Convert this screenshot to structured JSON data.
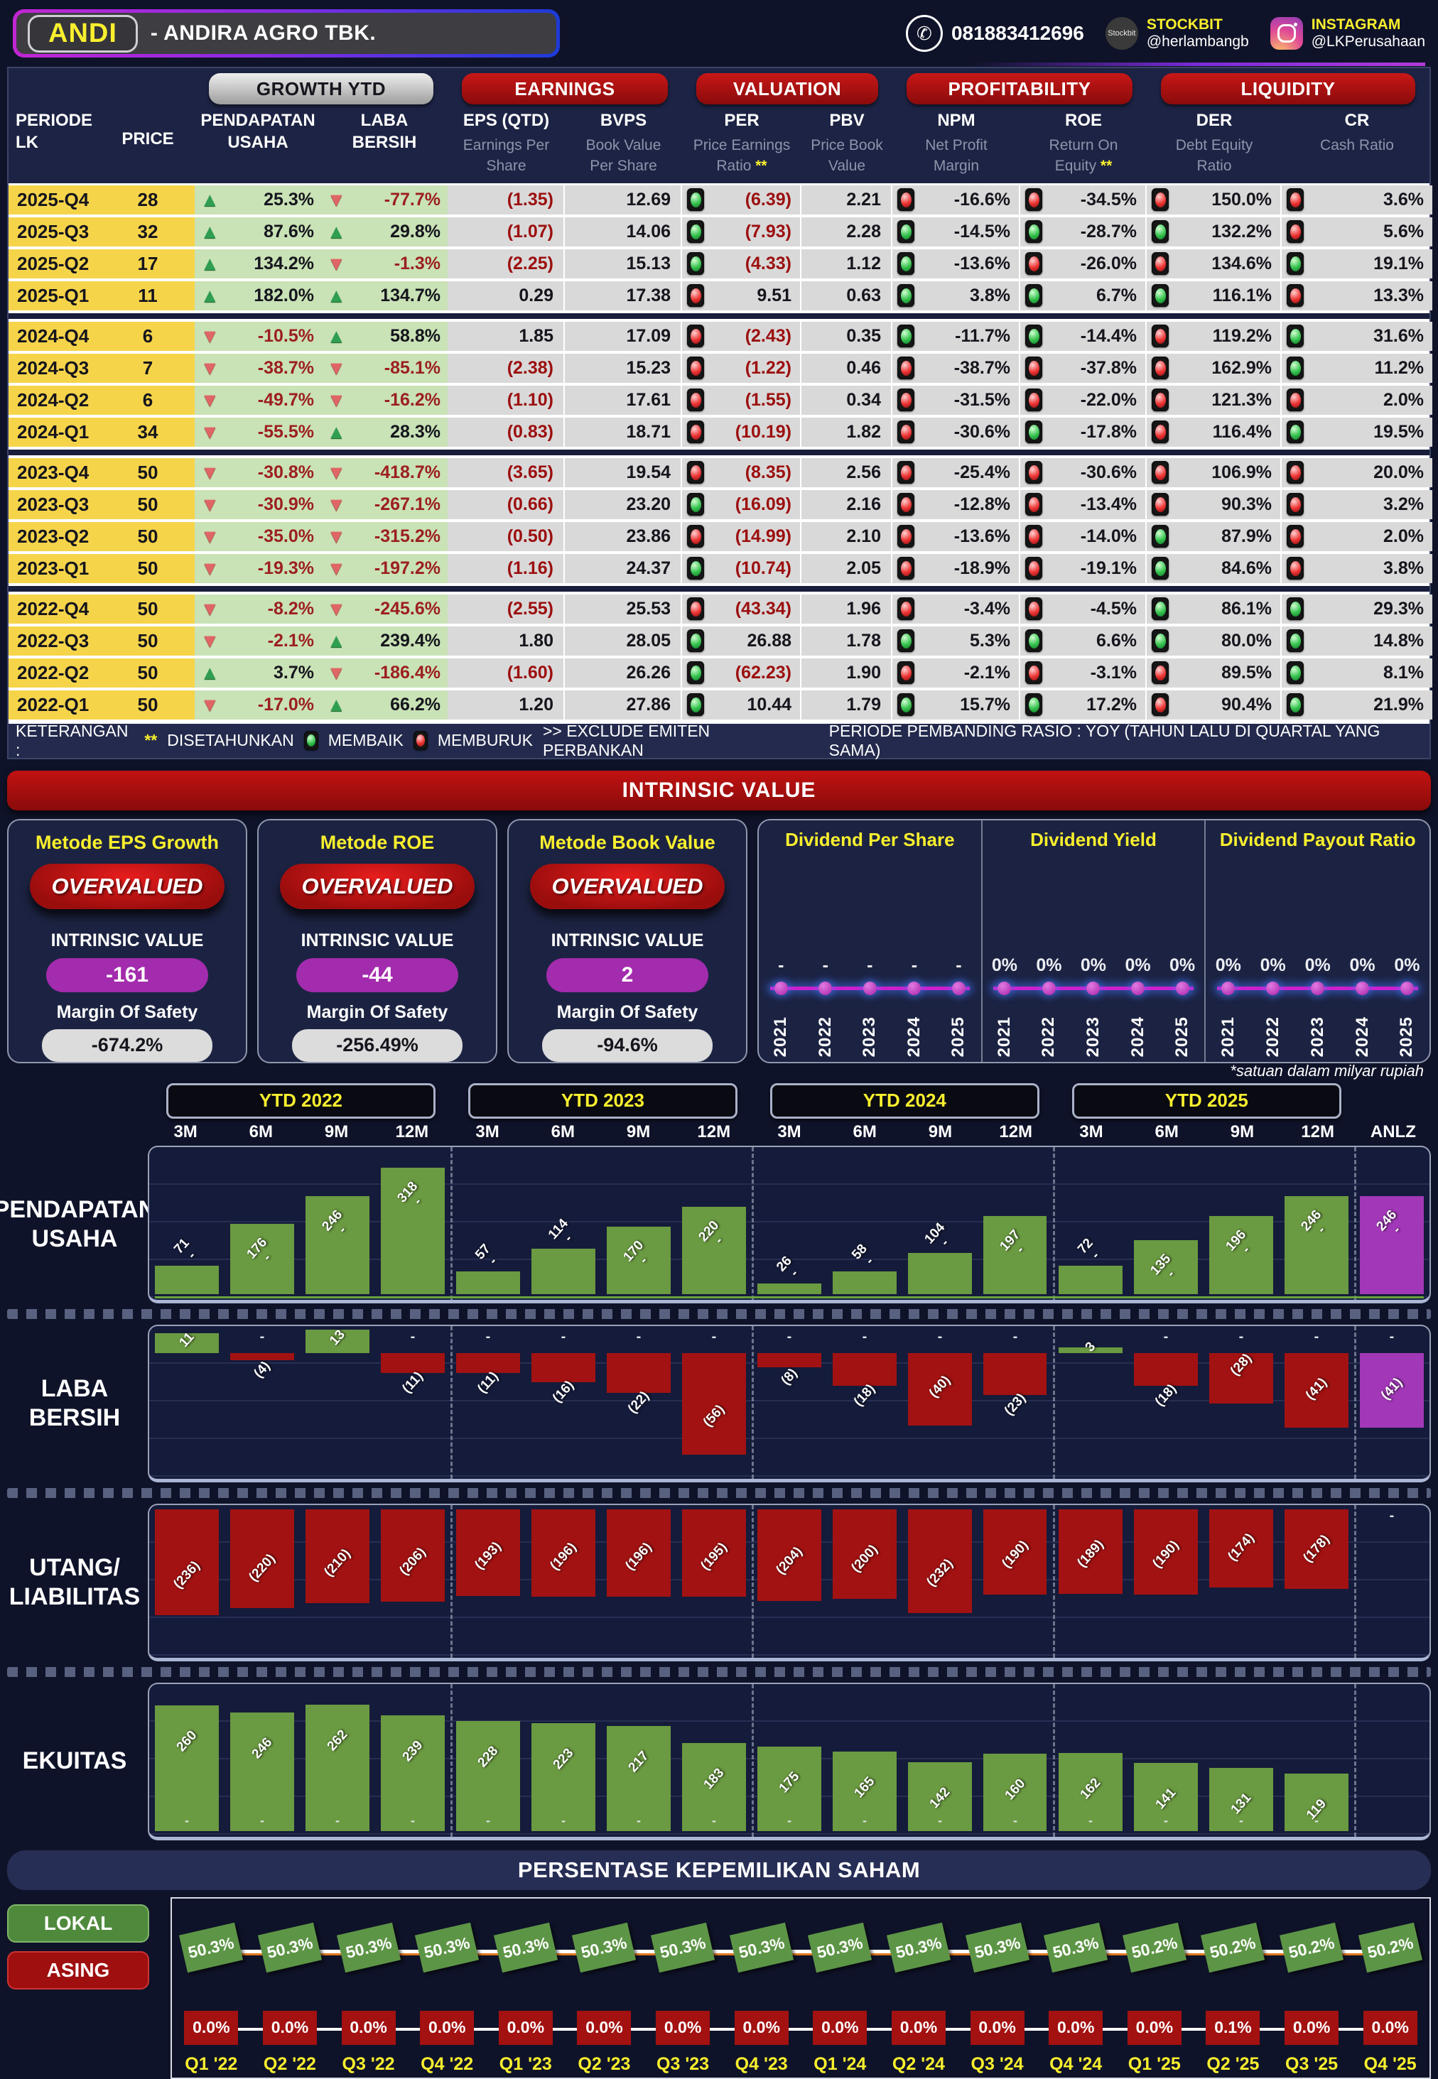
{
  "header": {
    "ticker": "ANDI",
    "company": "-  ANDIRA AGRO TBK.",
    "whatsapp": "081883412696",
    "stockbit_logo": "Stockbit",
    "stockbit_label": "STOCKBIT",
    "stockbit_handle": "@herlambangb",
    "instagram_label": "INSTAGRAM",
    "instagram_handle": "@LKPerusahaan"
  },
  "colors": {
    "accent_red": "#b01010",
    "bar_green": "#6a9a41",
    "bar_red": "#a21212",
    "bar_purple": "#a238b8",
    "line_magenta": "#cf1fcf",
    "lokal_green": "#5d9546",
    "asing_red": "#a31111",
    "yellow": "#f8ef2e"
  },
  "table": {
    "groups": [
      {
        "label": "GROWTH YTD",
        "kind": "silver"
      },
      {
        "label": "EARNINGS",
        "kind": "red"
      },
      {
        "label": "VALUATION",
        "kind": "red"
      },
      {
        "label": "PROFITABILITY",
        "kind": "red"
      },
      {
        "label": "LIQUIDITY",
        "kind": "red"
      }
    ],
    "columns": [
      {
        "t": "PERIODE\nLK",
        "cls": "left"
      },
      {
        "t": "PRICE",
        "cls": "price"
      },
      {
        "t": "PENDAPATAN\nUSAHA"
      },
      {
        "t": "LABA\nBERSIH"
      },
      {
        "t": "EPS (QTD)",
        "s": "Earnings Per\nShare"
      },
      {
        "t": "BVPS",
        "s": "Book Value\nPer Share"
      },
      {
        "t": "PER",
        "s": "Price Earnings\nRatio ",
        "star": true
      },
      {
        "t": "PBV",
        "s": "Price Book\nValue"
      },
      {
        "t": "NPM",
        "s": "Net Profit\nMargin"
      },
      {
        "t": "ROE",
        "s": "Return On\nEquity ",
        "star": true
      },
      {
        "t": "DER",
        "s": "Debt Equity\nRatio"
      },
      {
        "t": "CR",
        "s": "Cash Ratio"
      }
    ],
    "rows": [
      {
        "periode": "2025-Q4",
        "price": "28",
        "pu_dir": "up",
        "pu": "25.3%",
        "lb_dir": "down",
        "lb": "-77.7%",
        "eps": "(1.35)",
        "bvps": "12.69",
        "per_l": "g",
        "per": "(6.39)",
        "pbv": "2.21",
        "npm_l": "r",
        "npm": "-16.6%",
        "roe_l": "r",
        "roe": "-34.5%",
        "der_l": "r",
        "der": "150.0%",
        "cr_l": "r",
        "cr": "3.6%"
      },
      {
        "periode": "2025-Q3",
        "price": "32",
        "pu_dir": "up",
        "pu": "87.6%",
        "lb_dir": "up",
        "lb": "29.8%",
        "eps": "(1.07)",
        "bvps": "14.06",
        "per_l": "g",
        "per": "(7.93)",
        "pbv": "2.28",
        "npm_l": "g",
        "npm": "-14.5%",
        "roe_l": "g",
        "roe": "-28.7%",
        "der_l": "g",
        "der": "132.2%",
        "cr_l": "r",
        "cr": "5.6%"
      },
      {
        "periode": "2025-Q2",
        "price": "17",
        "pu_dir": "up",
        "pu": "134.2%",
        "lb_dir": "down",
        "lb": "-1.3%",
        "eps": "(2.25)",
        "bvps": "15.13",
        "per_l": "g",
        "per": "(4.33)",
        "pbv": "1.12",
        "npm_l": "g",
        "npm": "-13.6%",
        "roe_l": "r",
        "roe": "-26.0%",
        "der_l": "r",
        "der": "134.6%",
        "cr_l": "g",
        "cr": "19.1%"
      },
      {
        "periode": "2025-Q1",
        "price": "11",
        "pu_dir": "up",
        "pu": "182.0%",
        "lb_dir": "up",
        "lb": "134.7%",
        "eps": "0.29",
        "bvps": "17.38",
        "per_l": "r",
        "per": "9.51",
        "pbv": "0.63",
        "npm_l": "g",
        "npm": "3.8%",
        "roe_l": "g",
        "roe": "6.7%",
        "der_l": "g",
        "der": "116.1%",
        "cr_l": "r",
        "cr": "13.3%",
        "sep": true
      },
      {
        "periode": "2024-Q4",
        "price": "6",
        "pu_dir": "down",
        "pu": "-10.5%",
        "lb_dir": "up",
        "lb": "58.8%",
        "eps": "1.85",
        "bvps": "17.09",
        "per_l": "r",
        "per": "(2.43)",
        "pbv": "0.35",
        "npm_l": "g",
        "npm": "-11.7%",
        "roe_l": "g",
        "roe": "-14.4%",
        "der_l": "r",
        "der": "119.2%",
        "cr_l": "g",
        "cr": "31.6%"
      },
      {
        "periode": "2024-Q3",
        "price": "7",
        "pu_dir": "down",
        "pu": "-38.7%",
        "lb_dir": "down",
        "lb": "-85.1%",
        "eps": "(2.38)",
        "bvps": "15.23",
        "per_l": "r",
        "per": "(1.22)",
        "pbv": "0.46",
        "npm_l": "r",
        "npm": "-38.7%",
        "roe_l": "r",
        "roe": "-37.8%",
        "der_l": "r",
        "der": "162.9%",
        "cr_l": "g",
        "cr": "11.2%"
      },
      {
        "periode": "2024-Q2",
        "price": "6",
        "pu_dir": "down",
        "pu": "-49.7%",
        "lb_dir": "down",
        "lb": "-16.2%",
        "eps": "(1.10)",
        "bvps": "17.61",
        "per_l": "r",
        "per": "(1.55)",
        "pbv": "0.34",
        "npm_l": "r",
        "npm": "-31.5%",
        "roe_l": "r",
        "roe": "-22.0%",
        "der_l": "r",
        "der": "121.3%",
        "cr_l": "r",
        "cr": "2.0%"
      },
      {
        "periode": "2024-Q1",
        "price": "34",
        "pu_dir": "down",
        "pu": "-55.5%",
        "lb_dir": "up",
        "lb": "28.3%",
        "eps": "(0.83)",
        "bvps": "18.71",
        "per_l": "r",
        "per": "(10.19)",
        "pbv": "1.82",
        "npm_l": "r",
        "npm": "-30.6%",
        "roe_l": "g",
        "roe": "-17.8%",
        "der_l": "r",
        "der": "116.4%",
        "cr_l": "g",
        "cr": "19.5%",
        "sep": true
      },
      {
        "periode": "2023-Q4",
        "price": "50",
        "pu_dir": "down",
        "pu": "-30.8%",
        "lb_dir": "down",
        "lb": "-418.7%",
        "eps": "(3.65)",
        "bvps": "19.54",
        "per_l": "r",
        "per": "(8.35)",
        "pbv": "2.56",
        "npm_l": "r",
        "npm": "-25.4%",
        "roe_l": "r",
        "roe": "-30.6%",
        "der_l": "r",
        "der": "106.9%",
        "cr_l": "r",
        "cr": "20.0%"
      },
      {
        "periode": "2023-Q3",
        "price": "50",
        "pu_dir": "down",
        "pu": "-30.9%",
        "lb_dir": "down",
        "lb": "-267.1%",
        "eps": "(0.66)",
        "bvps": "23.20",
        "per_l": "g",
        "per": "(16.09)",
        "pbv": "2.16",
        "npm_l": "r",
        "npm": "-12.8%",
        "roe_l": "r",
        "roe": "-13.4%",
        "der_l": "r",
        "der": "90.3%",
        "cr_l": "r",
        "cr": "3.2%"
      },
      {
        "periode": "2023-Q2",
        "price": "50",
        "pu_dir": "down",
        "pu": "-35.0%",
        "lb_dir": "down",
        "lb": "-315.2%",
        "eps": "(0.50)",
        "bvps": "23.86",
        "per_l": "r",
        "per": "(14.99)",
        "pbv": "2.10",
        "npm_l": "r",
        "npm": "-13.6%",
        "roe_l": "r",
        "roe": "-14.0%",
        "der_l": "g",
        "der": "87.9%",
        "cr_l": "r",
        "cr": "2.0%"
      },
      {
        "periode": "2023-Q1",
        "price": "50",
        "pu_dir": "down",
        "pu": "-19.3%",
        "lb_dir": "down",
        "lb": "-197.2%",
        "eps": "(1.16)",
        "bvps": "24.37",
        "per_l": "g",
        "per": "(10.74)",
        "pbv": "2.05",
        "npm_l": "r",
        "npm": "-18.9%",
        "roe_l": "r",
        "roe": "-19.1%",
        "der_l": "g",
        "der": "84.6%",
        "cr_l": "r",
        "cr": "3.8%",
        "sep": true
      },
      {
        "periode": "2022-Q4",
        "price": "50",
        "pu_dir": "down",
        "pu": "-8.2%",
        "lb_dir": "down",
        "lb": "-245.6%",
        "eps": "(2.55)",
        "bvps": "25.53",
        "per_l": "r",
        "per": "(43.34)",
        "pbv": "1.96",
        "npm_l": "r",
        "npm": "-3.4%",
        "roe_l": "r",
        "roe": "-4.5%",
        "der_l": "g",
        "der": "86.1%",
        "cr_l": "g",
        "cr": "29.3%"
      },
      {
        "periode": "2022-Q3",
        "price": "50",
        "pu_dir": "down",
        "pu": "-2.1%",
        "lb_dir": "up",
        "lb": "239.4%",
        "eps": "1.80",
        "bvps": "28.05",
        "per_l": "g",
        "per": "26.88",
        "pbv": "1.78",
        "npm_l": "g",
        "npm": "5.3%",
        "roe_l": "g",
        "roe": "6.6%",
        "der_l": "g",
        "der": "80.0%",
        "cr_l": "g",
        "cr": "14.8%"
      },
      {
        "periode": "2022-Q2",
        "price": "50",
        "pu_dir": "up",
        "pu": "3.7%",
        "lb_dir": "down",
        "lb": "-186.4%",
        "eps": "(1.60)",
        "bvps": "26.26",
        "per_l": "g",
        "per": "(62.23)",
        "pbv": "1.90",
        "npm_l": "r",
        "npm": "-2.1%",
        "roe_l": "r",
        "roe": "-3.1%",
        "der_l": "r",
        "der": "89.5%",
        "cr_l": "g",
        "cr": "8.1%"
      },
      {
        "periode": "2022-Q1",
        "price": "50",
        "pu_dir": "down",
        "pu": "-17.0%",
        "lb_dir": "up",
        "lb": "66.2%",
        "eps": "1.20",
        "bvps": "27.86",
        "per_l": "g",
        "per": "10.44",
        "pbv": "1.79",
        "npm_l": "g",
        "npm": "15.7%",
        "roe_l": "g",
        "roe": "17.2%",
        "der_l": "r",
        "der": "90.4%",
        "cr_l": "g",
        "cr": "21.9%"
      }
    ],
    "keterangan": {
      "label": "KETERANGAN :",
      "star": "**",
      "item1": "DISETAHUNKAN",
      "good": "MEMBAIK",
      "bad": "MEMBURUK",
      "exclude": ">> EXCLUDE EMITEN PERBANKAN",
      "right": "PERIODE PEMBANDING RASIO : YOY (TAHUN LALU DI QUARTAL YANG SAMA)"
    }
  },
  "intrinsic": {
    "banner": "INTRINSIC VALUE",
    "iv_label": "INTRINSIC VALUE",
    "mos_label": "Margin Of Safety",
    "methods": [
      {
        "title": "Metode EPS Growth",
        "status": "OVERVALUED",
        "value": "-161",
        "mos": "-674.2%"
      },
      {
        "title": "Metode ROE",
        "status": "OVERVALUED",
        "value": "-44",
        "mos": "-256.49%"
      },
      {
        "title": "Metode Book Value",
        "status": "OVERVALUED",
        "value": "2",
        "mos": "-94.6%"
      }
    ]
  },
  "charts": {
    "note": "*satuan dalam milyar rupiah",
    "ytd": [
      "YTD 2022",
      "YTD 2023",
      "YTD 2024",
      "YTD 2025"
    ],
    "cols": [
      "3M",
      "6M",
      "9M",
      "12M",
      "3M",
      "6M",
      "9M",
      "12M",
      "3M",
      "6M",
      "9M",
      "12M",
      "3M",
      "6M",
      "9M",
      "12M",
      "ANLZ"
    ]
  },
  "ownership": {
    "title": "PERSENTASE KEPEMILIKAN SAHAM",
    "legend_lokal": "LOKAL",
    "legend_asing": "ASING"
  },
  "chart_data": [
    {
      "id": "pendapatan_usaha",
      "type": "bar",
      "title": "PENDAPATAN USAHA",
      "left_label": "PENDAPATAN\nUSAHA",
      "groups": [
        "YTD 2022",
        "YTD 2023",
        "YTD 2024",
        "YTD 2025"
      ],
      "categories": [
        "3M",
        "6M",
        "9M",
        "12M"
      ],
      "values": [
        71,
        176,
        246,
        318,
        57,
        114,
        170,
        220,
        26,
        58,
        104,
        197,
        72,
        135,
        196,
        246
      ],
      "anlz": 246,
      "ylabel": "milyar rupiah"
    },
    {
      "id": "laba_bersih",
      "type": "bar",
      "title": "LABA BERSIH",
      "left_label": "LABA\nBERSIH",
      "groups": [
        "YTD 2022",
        "YTD 2023",
        "YTD 2024",
        "YTD 2025"
      ],
      "categories": [
        "3M",
        "6M",
        "9M",
        "12M"
      ],
      "values": [
        11,
        -4,
        13,
        -11,
        -11,
        -16,
        -22,
        -56,
        -8,
        -18,
        -40,
        -23,
        3,
        -18,
        -28,
        -41
      ],
      "anlz": -41,
      "ylabel": "milyar rupiah"
    },
    {
      "id": "utang_liabilitas",
      "type": "bar",
      "title": "UTANG/LIABILITAS",
      "left_label": "UTANG/\nLIABILITAS",
      "groups": [
        "YTD 2022",
        "YTD 2023",
        "YTD 2024",
        "YTD 2025"
      ],
      "categories": [
        "3M",
        "6M",
        "9M",
        "12M"
      ],
      "values": [
        -236,
        -220,
        -210,
        -206,
        -193,
        -196,
        -196,
        -195,
        -204,
        -200,
        -232,
        -190,
        -189,
        -190,
        -174,
        -178
      ],
      "anlz": null,
      "ylabel": "milyar rupiah"
    },
    {
      "id": "ekuitas",
      "type": "bar",
      "title": "EKUITAS",
      "left_label": "EKUITAS",
      "groups": [
        "YTD 2022",
        "YTD 2023",
        "YTD 2024",
        "YTD 2025"
      ],
      "categories": [
        "3M",
        "6M",
        "9M",
        "12M"
      ],
      "values": [
        260,
        246,
        262,
        239,
        228,
        223,
        217,
        183,
        175,
        165,
        142,
        160,
        162,
        141,
        131,
        119
      ],
      "anlz": null,
      "ylabel": "milyar rupiah"
    },
    {
      "id": "dividend_per_share",
      "type": "line",
      "title": "Dividend Per Share",
      "x": [
        "2021",
        "2022",
        "2023",
        "2024",
        "2025"
      ],
      "values": [
        0,
        0,
        0,
        0,
        0
      ],
      "labels": [
        "-",
        "-",
        "-",
        "-",
        "-"
      ]
    },
    {
      "id": "dividend_yield",
      "type": "line",
      "title": "Dividend Yield",
      "x": [
        "2021",
        "2022",
        "2023",
        "2024",
        "2025"
      ],
      "values": [
        0,
        0,
        0,
        0,
        0
      ],
      "labels": [
        "0%",
        "0%",
        "0%",
        "0%",
        "0%"
      ]
    },
    {
      "id": "dividend_payout_ratio",
      "type": "line",
      "title": "Dividend Payout Ratio",
      "x": [
        "2021",
        "2022",
        "2023",
        "2024",
        "2025"
      ],
      "values": [
        0,
        0,
        0,
        0,
        0
      ],
      "labels": [
        "0%",
        "0%",
        "0%",
        "0%",
        "0%"
      ]
    },
    {
      "id": "kepemilikan_lokal",
      "type": "line",
      "title": "LOKAL",
      "x": [
        "Q1 '22",
        "Q2 '22",
        "Q3 '22",
        "Q4 '22",
        "Q1 '23",
        "Q2 '23",
        "Q3 '23",
        "Q4 '23",
        "Q1 '24",
        "Q2 '24",
        "Q3 '24",
        "Q4 '24",
        "Q1 '25",
        "Q2 '25",
        "Q3 '25",
        "Q4 '25"
      ],
      "values": [
        50.3,
        50.3,
        50.3,
        50.3,
        50.3,
        50.3,
        50.3,
        50.3,
        50.3,
        50.3,
        50.3,
        50.3,
        50.2,
        50.2,
        50.2,
        50.2
      ],
      "labels": [
        "50.3%",
        "50.3%",
        "50.3%",
        "50.3%",
        "50.3%",
        "50.3%",
        "50.3%",
        "50.3%",
        "50.3%",
        "50.3%",
        "50.3%",
        "50.3%",
        "50.2%",
        "50.2%",
        "50.2%",
        "50.2%"
      ]
    },
    {
      "id": "kepemilikan_asing",
      "type": "line",
      "title": "ASING",
      "x": [
        "Q1 '22",
        "Q2 '22",
        "Q3 '22",
        "Q4 '22",
        "Q1 '23",
        "Q2 '23",
        "Q3 '23",
        "Q4 '23",
        "Q1 '24",
        "Q2 '24",
        "Q3 '24",
        "Q4 '24",
        "Q1 '25",
        "Q2 '25",
        "Q3 '25",
        "Q4 '25"
      ],
      "values": [
        0,
        0,
        0,
        0,
        0,
        0,
        0,
        0,
        0,
        0,
        0,
        0,
        0,
        0.1,
        0,
        0
      ],
      "labels": [
        "0.0%",
        "0.0%",
        "0.0%",
        "0.0%",
        "0.0%",
        "0.0%",
        "0.0%",
        "0.0%",
        "0.0%",
        "0.0%",
        "0.0%",
        "0.0%",
        "0.0%",
        "0.1%",
        "0.0%",
        "0.0%"
      ]
    }
  ]
}
